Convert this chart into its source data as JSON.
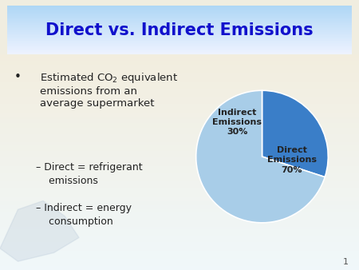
{
  "title": "Direct vs. Indirect Emissions",
  "title_color": "#1111cc",
  "title_fontsize": 15,
  "title_bg_top": "#ddeeff",
  "title_bg_bot": "#a8d0ee",
  "bg_color": "#f0ede0",
  "body_bg_color": "#eef5f8",
  "slide_number": "1",
  "text_color": "#222222",
  "bullet_color": "#222222",
  "sub_text_color": "#222222",
  "pie_values": [
    30,
    70
  ],
  "pie_labels": [
    "Indirect\nEmissions\n30%",
    "Direct\nEmissions\n70%"
  ],
  "pie_colors": [
    "#3a7ec8",
    "#a8cde8"
  ],
  "pie_label_color": "#222222",
  "pie_label_fontsize": 8,
  "pie_startangle": 90,
  "title_rect_color": "#c5dff5"
}
